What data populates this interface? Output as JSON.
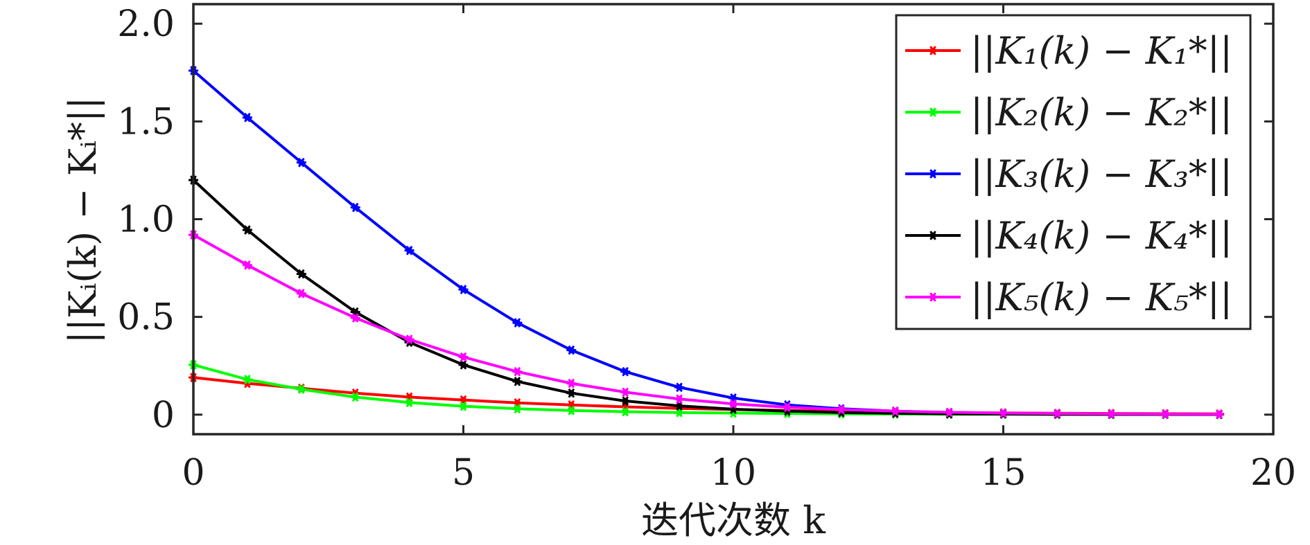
{
  "chart_data": {
    "type": "line",
    "x": [
      0,
      1,
      2,
      3,
      4,
      5,
      6,
      7,
      8,
      9,
      10,
      11,
      12,
      13,
      14,
      15,
      16,
      17,
      18,
      19
    ],
    "series": [
      {
        "name": "||K₁(k) − K₁*||",
        "color": "#ff0000",
        "values": [
          0.19,
          0.16,
          0.135,
          0.11,
          0.09,
          0.075,
          0.06,
          0.05,
          0.04,
          0.032,
          0.026,
          0.021,
          0.017,
          0.014,
          0.011,
          0.009,
          0.007,
          0.006,
          0.005,
          0.004
        ]
      },
      {
        "name": "||K₂(k) − K₂*||",
        "color": "#00ff00",
        "values": [
          0.255,
          0.18,
          0.13,
          0.09,
          0.062,
          0.043,
          0.03,
          0.021,
          0.015,
          0.011,
          0.008,
          0.006,
          0.004,
          0.003,
          0.002,
          0.002,
          0.001,
          0.001,
          0.001,
          0.001
        ]
      },
      {
        "name": "||K₃(k) − K₃*||",
        "color": "#0000ff",
        "values": [
          1.76,
          1.52,
          1.29,
          1.06,
          0.84,
          0.64,
          0.47,
          0.33,
          0.22,
          0.14,
          0.085,
          0.05,
          0.03,
          0.018,
          0.011,
          0.007,
          0.004,
          0.003,
          0.002,
          0.001
        ]
      },
      {
        "name": "||K₄(k) − K₄*||",
        "color": "#000000",
        "values": [
          1.2,
          0.945,
          0.72,
          0.525,
          0.37,
          0.255,
          0.17,
          0.11,
          0.07,
          0.045,
          0.028,
          0.018,
          0.011,
          0.007,
          0.004,
          0.003,
          0.002,
          0.001,
          0.001,
          0.0005
        ]
      },
      {
        "name": "||K₅(k) − K₅*||",
        "color": "#ff00ff",
        "values": [
          0.92,
          0.765,
          0.62,
          0.495,
          0.385,
          0.295,
          0.22,
          0.16,
          0.115,
          0.08,
          0.055,
          0.038,
          0.026,
          0.018,
          0.012,
          0.008,
          0.006,
          0.004,
          0.003,
          0.002
        ]
      }
    ],
    "xlabel": "迭代次数 k",
    "ylabel": "||Kᵢ(k) − Kᵢ*||",
    "xlim": [
      0,
      20
    ],
    "ylim": [
      -0.1,
      2.1
    ],
    "xticks": [
      0,
      5,
      10,
      15,
      20
    ],
    "xtick_labels": [
      "0",
      "5",
      "10",
      "15",
      "20"
    ],
    "yticks": [
      0,
      0.5,
      1.0,
      1.5,
      2.0
    ],
    "ytick_labels": [
      "0",
      "0.5",
      "1.0",
      "1.5",
      "2.0"
    ],
    "grid": false,
    "legend": "top-right",
    "marker": "asterisk"
  }
}
